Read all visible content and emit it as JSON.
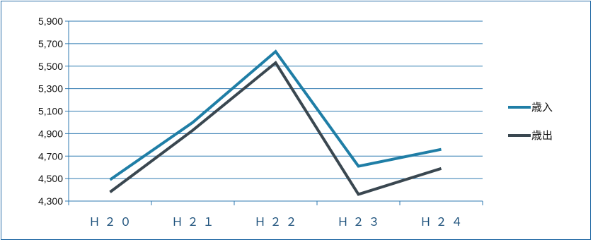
{
  "chart_data": {
    "type": "line",
    "categories": [
      "Ｈ２０",
      "Ｈ２１",
      "Ｈ２２",
      "Ｈ２３",
      "Ｈ２４"
    ],
    "series": [
      {
        "name": "歳入",
        "values": [
          4490,
          5000,
          5630,
          4610,
          4760
        ],
        "color": "#1f7ea6"
      },
      {
        "name": "歳出",
        "values": [
          4380,
          4930,
          5530,
          4360,
          4590
        ],
        "color": "#3a4750"
      }
    ],
    "ylim": [
      4300,
      5900
    ],
    "yticks": [
      "4,300",
      "4,500",
      "4,700",
      "4,900",
      "5,100",
      "5,300",
      "5,500",
      "5,700",
      "5,900"
    ],
    "grid": true,
    "legend_position": "right",
    "title": "",
    "xlabel": "",
    "ylabel": ""
  }
}
